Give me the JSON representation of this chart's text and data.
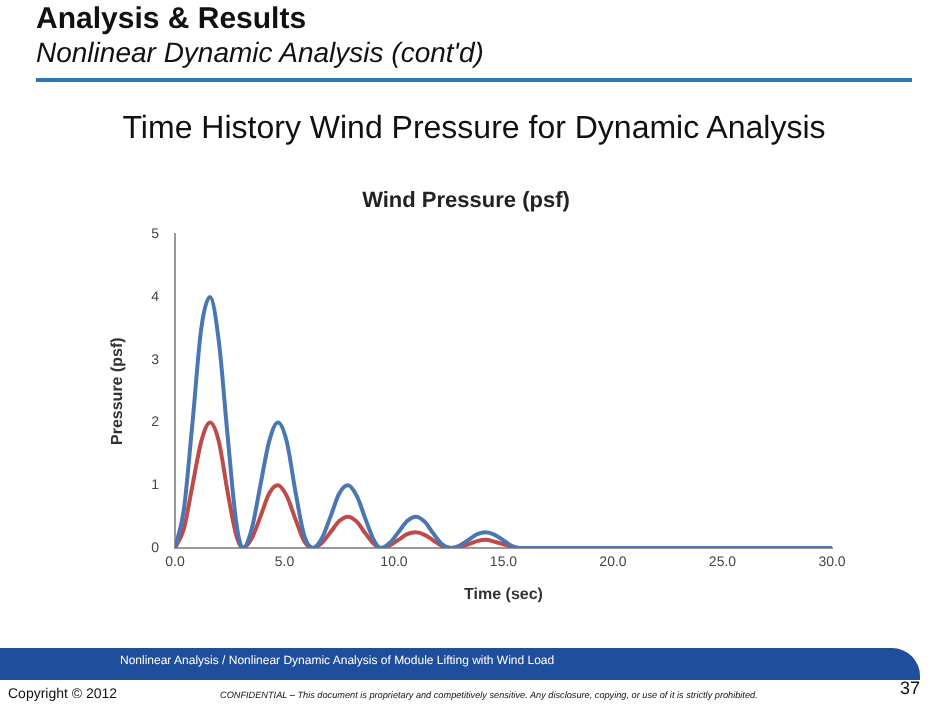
{
  "chart_data": {
    "type": "line",
    "title": "Wind Pressure (psf)",
    "xlabel": "Time (sec)",
    "ylabel": "Pressure (psf)",
    "annotations": [
      "Analysis & Results",
      "Nonlinear Dynamic Analysis (cont'd)",
      "Time History Wind Pressure for Dynamic Analysis",
      "Nonlinear Analysis / Nonlinear Dynamic Analysis of Module Lifting with Wind Load",
      "Copyright © 2012",
      "CONFIDENTIAL – This document is proprietary and competitively sensitive. Any disclosure, copying, or use of it is strictly prohibited.",
      "37"
    ],
    "x": [
      0,
      0.4,
      0.8,
      1.2,
      1.6,
      2.0,
      2.4,
      2.8,
      3.1,
      3.5,
      3.9,
      4.3,
      4.7,
      5.1,
      5.5,
      5.9,
      6.3,
      6.7,
      7.1,
      7.5,
      7.9,
      8.3,
      8.7,
      9.1,
      9.4,
      9.8,
      10.2,
      10.6,
      11.0,
      11.4,
      11.8,
      12.2,
      12.6,
      13.0,
      13.4,
      13.8,
      14.2,
      14.6,
      15.0,
      15.4,
      15.7,
      30
    ],
    "series": [
      {
        "color": "#4a77b4",
        "values": [
          0,
          0.6,
          2.0,
          3.5,
          4.0,
          3.3,
          1.8,
          0.4,
          0,
          0.3,
          1.0,
          1.7,
          2.0,
          1.7,
          0.9,
          0.2,
          0,
          0.15,
          0.5,
          0.87,
          1.0,
          0.83,
          0.46,
          0.11,
          0,
          0.08,
          0.25,
          0.43,
          0.5,
          0.42,
          0.23,
          0.06,
          0,
          0.04,
          0.13,
          0.22,
          0.25,
          0.21,
          0.12,
          0.03,
          0,
          0
        ]
      },
      {
        "color": "#be4b48",
        "values": [
          0,
          0.3,
          1.0,
          1.7,
          2.0,
          1.7,
          0.9,
          0.2,
          0,
          0.15,
          0.5,
          0.87,
          1.0,
          0.83,
          0.46,
          0.11,
          0,
          0.08,
          0.25,
          0.43,
          0.5,
          0.42,
          0.23,
          0.06,
          0,
          0.04,
          0.13,
          0.22,
          0.25,
          0.21,
          0.12,
          0.03,
          0,
          0.02,
          0.06,
          0.11,
          0.13,
          0.1,
          0.06,
          0.02,
          0,
          0
        ]
      }
    ],
    "xlim": [
      0,
      30
    ],
    "xticks": [
      {
        "value": 0,
        "label": "0.0"
      },
      {
        "value": 5,
        "label": "5.0"
      },
      {
        "value": 10,
        "label": "10.0"
      },
      {
        "value": 15,
        "label": "15.0"
      },
      {
        "value": 20,
        "label": "20.0"
      },
      {
        "value": 25,
        "label": "25.0"
      },
      {
        "value": 30,
        "label": "30.0"
      }
    ],
    "ylim": [
      0,
      5
    ],
    "yticks": [
      0,
      1,
      2,
      3,
      4,
      5
    ],
    "grid": false,
    "legend": false,
    "marker": "none",
    "line_style": "solid"
  }
}
